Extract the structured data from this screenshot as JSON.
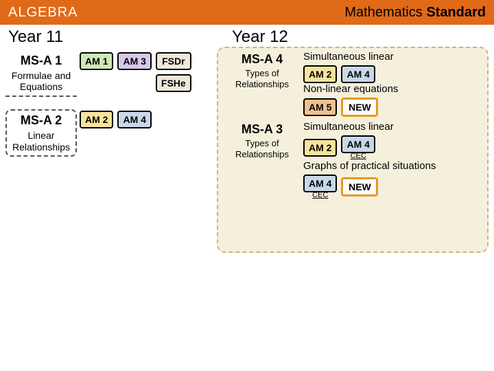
{
  "header": {
    "background": "#e06a18",
    "left_color": "#ffffff",
    "right_color": "#000000",
    "left": "ALGEBRA",
    "right_plain": "Mathematics ",
    "right_bold": "Standard"
  },
  "colors": {
    "am1": "#cfe8b8",
    "am2": "#f7e39c",
    "am3": "#d8c8e8",
    "am4": "#c8d8e8",
    "am5": "#f0c090",
    "fsdr": "#f0e8d8",
    "fshe": "#f0e8d8",
    "new_border": "#e89820",
    "new_bg": "#ffffff"
  },
  "year11": {
    "title": "Year 11",
    "rows": [
      {
        "code": "MS-A 1",
        "sub": "Formulae and Equations",
        "style": "underline",
        "tags": [
          {
            "label": "AM 1",
            "color": "am1"
          },
          {
            "label": "AM 3",
            "color": "am3"
          }
        ],
        "fs": [
          {
            "label": "FSDr",
            "color": "fsdr"
          },
          {
            "label": "FSHe",
            "color": "fshe"
          }
        ]
      },
      {
        "code": "MS-A 2",
        "sub": "Linear Relationships",
        "style": "box",
        "tags": [
          {
            "label": "AM 2",
            "color": "am2"
          },
          {
            "label": "AM 4",
            "color": "am4"
          }
        ],
        "fs": []
      }
    ]
  },
  "year12": {
    "title": "Year 12",
    "rows": [
      {
        "code": "MS-A 4",
        "sub": "Types of Relationships",
        "blocks": [
          {
            "label": "Simultaneous linear",
            "tags": [
              {
                "label": "AM 2",
                "color": "am2"
              },
              {
                "label": "AM 4",
                "color": "am4"
              }
            ]
          },
          {
            "label": "Non-linear equations",
            "tags": [
              {
                "label": "AM 5",
                "color": "am5"
              },
              {
                "label": "NEW",
                "color": "new"
              }
            ]
          }
        ]
      },
      {
        "code": "MS-A 3",
        "sub": "Types of Relationships",
        "blocks": [
          {
            "label": "Simultaneous linear",
            "tags": [
              {
                "label": "AM 2",
                "color": "am2"
              },
              {
                "label": "AM 4",
                "color": "am4",
                "cec": "CEC"
              }
            ]
          },
          {
            "label": "Graphs of practical situations",
            "tags": [
              {
                "label": "AM 4",
                "color": "am4",
                "cec": "CEC"
              },
              {
                "label": "NEW",
                "color": "new"
              }
            ]
          }
        ]
      }
    ]
  }
}
